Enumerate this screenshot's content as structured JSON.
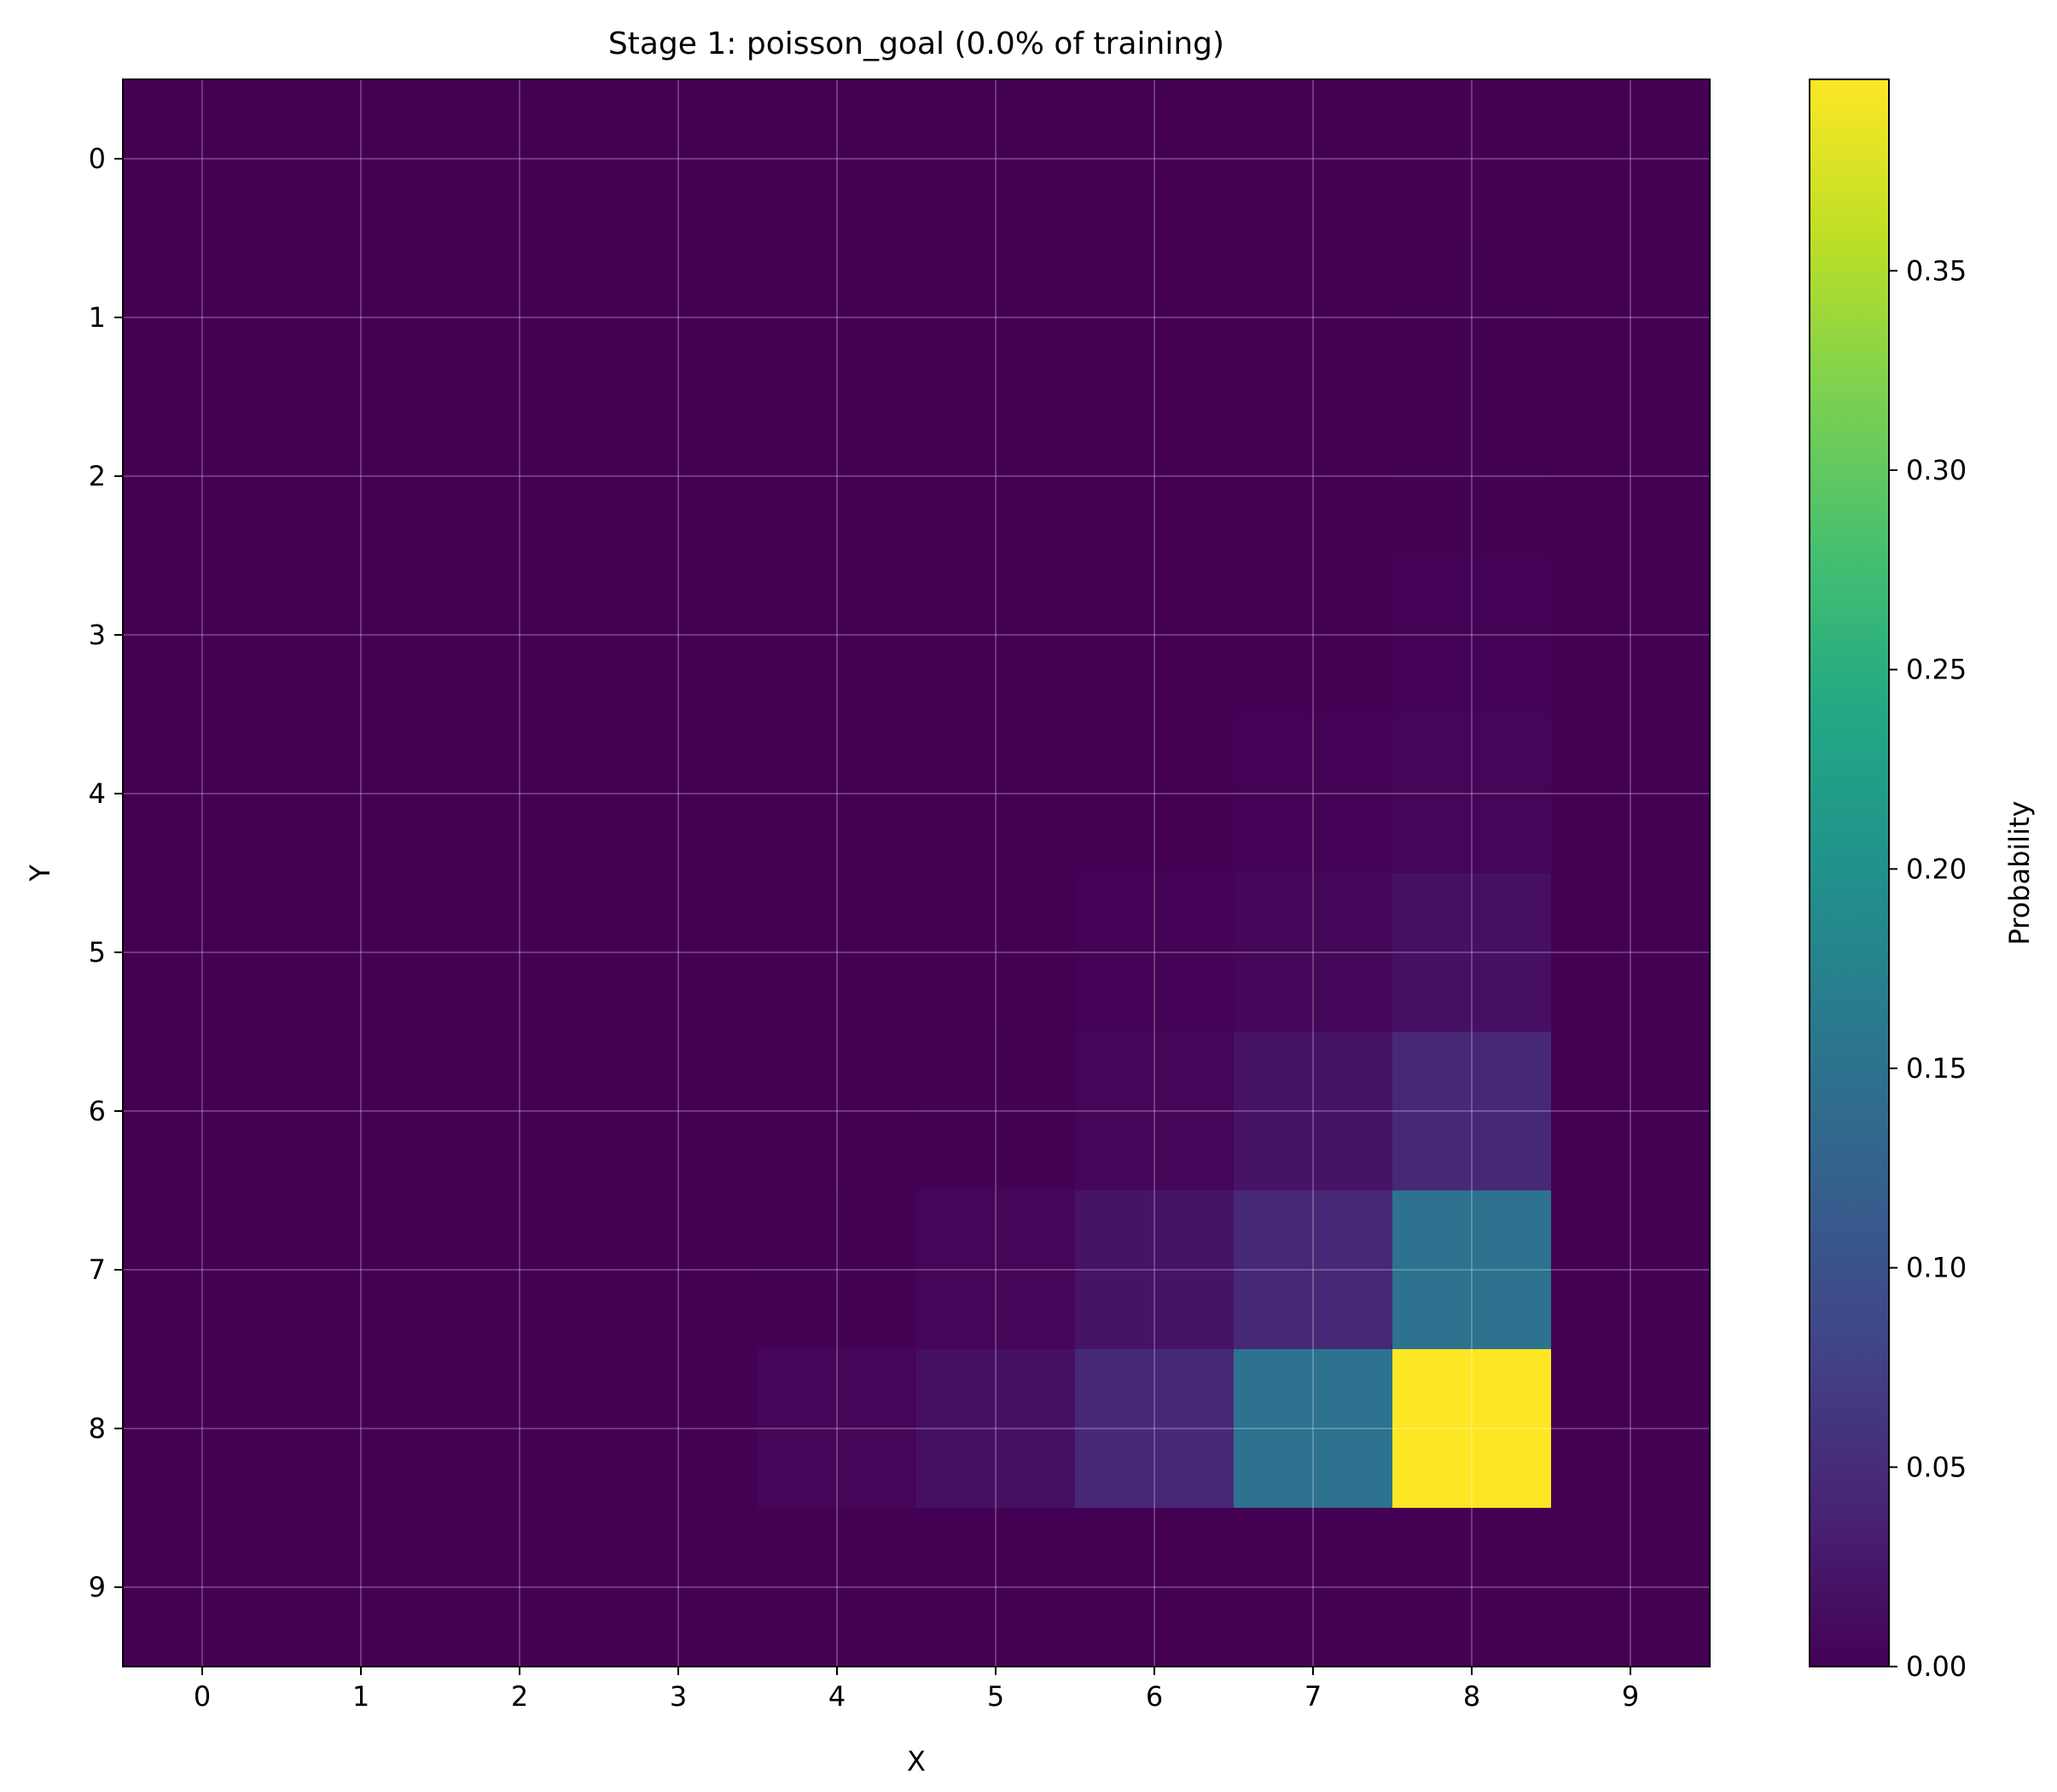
{
  "chart_data": {
    "type": "heatmap",
    "title": "Stage 1: poisson_goal (0.0% of training)",
    "xlabel": "X",
    "ylabel": "Y",
    "x_categories": [
      "0",
      "1",
      "2",
      "3",
      "4",
      "5",
      "6",
      "7",
      "8",
      "9"
    ],
    "y_categories": [
      "0",
      "1",
      "2",
      "3",
      "4",
      "5",
      "6",
      "7",
      "8",
      "9"
    ],
    "y_axis_inverted": true,
    "grid": true,
    "colormap": "viridis",
    "colorbar": {
      "label": "Probability",
      "min": 0.0,
      "max": 0.398,
      "ticks": [
        0.0,
        0.05,
        0.1,
        0.15,
        0.2,
        0.25,
        0.3,
        0.35
      ],
      "tick_labels": [
        "0.00",
        "0.05",
        "0.10",
        "0.15",
        "0.20",
        "0.25",
        "0.30",
        "0.35"
      ]
    },
    "values": [
      [
        0,
        0,
        0,
        0,
        0,
        0,
        0,
        0,
        0.0003,
        0
      ],
      [
        0,
        0,
        0,
        0,
        0,
        0,
        0,
        0,
        0.0006,
        0
      ],
      [
        0,
        0,
        0,
        0,
        0,
        0,
        0,
        0,
        0.0012,
        0
      ],
      [
        0,
        0,
        0,
        0,
        0,
        0,
        0,
        0.0005,
        0.0025,
        0
      ],
      [
        0,
        0,
        0,
        0,
        0,
        0,
        0,
        0.002,
        0.006,
        0
      ],
      [
        0,
        0,
        0,
        0,
        0,
        0,
        0.002,
        0.007,
        0.016,
        0
      ],
      [
        0,
        0,
        0,
        0,
        0,
        0.001,
        0.006,
        0.02,
        0.045,
        0
      ],
      [
        0,
        0,
        0,
        0,
        0.0015,
        0.006,
        0.02,
        0.045,
        0.15,
        0
      ],
      [
        0,
        0,
        0,
        0,
        0.006,
        0.017,
        0.045,
        0.15,
        0.398,
        0
      ],
      [
        0,
        0,
        0,
        0,
        0,
        0,
        0,
        0,
        0,
        0
      ]
    ]
  }
}
